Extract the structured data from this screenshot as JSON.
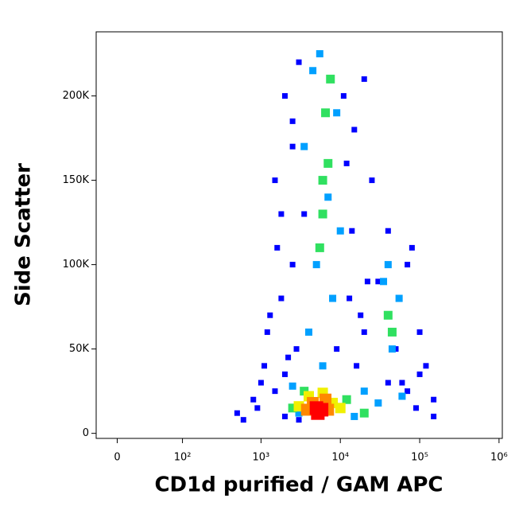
{
  "chart_data": {
    "type": "density",
    "x_label": "CD1d purified / GAM APC",
    "y_label": "Side Scatter",
    "xscale": "arcsinh",
    "xscale_width": 30.8,
    "xlim": [
      -20,
      1100000
    ],
    "xticks": [
      0,
      {
        "value": 100,
        "label": "10²"
      },
      {
        "value": 1000,
        "label": "10³"
      },
      {
        "value": 10000,
        "label": "10⁴"
      },
      {
        "value": 100000,
        "label": "10⁵"
      },
      {
        "value": 1000000,
        "label": "10⁶"
      }
    ],
    "ylim": [
      -3000,
      238000
    ],
    "yticks": [
      0,
      {
        "value": 50000,
        "label": "50K"
      },
      {
        "value": 100000,
        "label": "100K"
      },
      {
        "value": 150000,
        "label": "150K"
      },
      {
        "value": 200000,
        "label": "200K"
      }
    ],
    "layers": [
      {
        "color": "#0000ff",
        "x": [
          2000,
          1500,
          2500,
          1200,
          3000,
          20000,
          25000,
          15000,
          40000,
          80000,
          100000,
          120000,
          1000,
          800,
          1800,
          2200,
          60000,
          90000,
          3500,
          14000,
          13000,
          16000,
          30000,
          50000,
          70000,
          150000,
          500,
          2000,
          1500,
          2500,
          11000,
          12000,
          9000,
          2800,
          1800,
          1300,
          100000,
          70000,
          40000,
          20000,
          600,
          900,
          3000,
          2000,
          150000,
          18000,
          22000,
          2500,
          1600,
          1100
        ],
        "y": [
          200000,
          150000,
          100000,
          60000,
          220000,
          210000,
          150000,
          180000,
          120000,
          110000,
          60000,
          40000,
          30000,
          20000,
          80000,
          45000,
          30000,
          15000,
          130000,
          120000,
          80000,
          40000,
          90000,
          50000,
          100000,
          20000,
          12000,
          35000,
          25000,
          170000,
          200000,
          160000,
          50000,
          50000,
          130000,
          70000,
          35000,
          25000,
          30000,
          60000,
          8000,
          15000,
          8000,
          10000,
          10000,
          70000,
          90000,
          185000,
          110000,
          40000
        ]
      },
      {
        "color": "#00a0ff",
        "x": [
          4000,
          5000,
          7000,
          9000,
          3500,
          4500,
          8000,
          6000,
          10000,
          5500,
          35000,
          45000,
          55000,
          40000,
          2500,
          3000,
          15000,
          20000,
          30000,
          60000
        ],
        "y": [
          60000,
          100000,
          140000,
          190000,
          170000,
          215000,
          80000,
          40000,
          120000,
          225000,
          90000,
          50000,
          80000,
          100000,
          28000,
          12000,
          10000,
          25000,
          18000,
          22000
        ]
      },
      {
        "color": "#30e060",
        "x": [
          6000,
          7000,
          6500,
          5500,
          7500,
          6000,
          40000,
          45000,
          3500,
          12000,
          20000,
          2500
        ],
        "y": [
          130000,
          160000,
          190000,
          110000,
          210000,
          150000,
          70000,
          60000,
          25000,
          20000,
          12000,
          15000
        ]
      },
      {
        "color": "#f0f000",
        "x": [
          4000,
          6000,
          8000,
          3000,
          10000
        ],
        "y": [
          22000,
          24000,
          18000,
          16000,
          15000
        ]
      },
      {
        "color": "#ff8800",
        "x": [
          4500,
          6500,
          7000,
          3800
        ],
        "y": [
          18000,
          20000,
          14000,
          14000
        ]
      },
      {
        "color": "#ff0000",
        "x": [
          5000,
          5800,
          5200
        ],
        "y": [
          15000,
          14000,
          12000
        ]
      }
    ]
  }
}
